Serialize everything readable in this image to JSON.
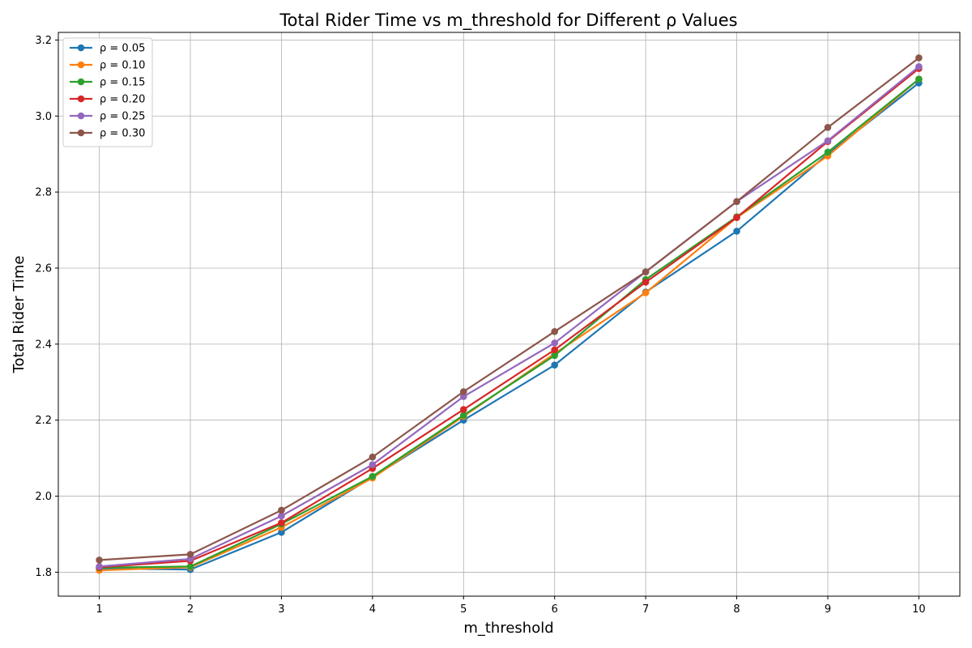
{
  "chart_data": {
    "type": "line",
    "title": "Total Rider Time vs m_threshold for Different ρ Values",
    "xlabel": "m_threshold",
    "ylabel": "Total Rider Time",
    "x": [
      1,
      2,
      3,
      4,
      5,
      6,
      7,
      8,
      9,
      10
    ],
    "xlim": [
      0.55,
      10.45
    ],
    "ylim": [
      1.737,
      3.22
    ],
    "yticks": [
      1.8,
      2.0,
      2.2,
      2.4,
      2.6,
      2.8,
      3.0,
      3.2
    ],
    "ytick_labels": [
      "1.8",
      "2.0",
      "2.2",
      "2.4",
      "2.6",
      "2.8",
      "3.0",
      "3.2"
    ],
    "xtick_labels": [
      "1",
      "2",
      "3",
      "4",
      "5",
      "6",
      "7",
      "8",
      "9",
      "10"
    ],
    "grid": true,
    "legend_position": "upper-left",
    "series": [
      {
        "name": "ρ = 0.05",
        "color": "#1f77b4",
        "values": [
          1.81,
          1.807,
          1.905,
          2.05,
          2.2,
          2.345,
          2.537,
          2.697,
          2.9,
          3.087
        ]
      },
      {
        "name": "ρ = 0.10",
        "color": "#ff7f0e",
        "values": [
          1.805,
          1.813,
          1.918,
          2.048,
          2.21,
          2.375,
          2.535,
          2.733,
          2.895,
          3.097
        ]
      },
      {
        "name": "ρ = 0.15",
        "color": "#2ca02c",
        "values": [
          1.812,
          1.815,
          1.927,
          2.052,
          2.213,
          2.37,
          2.57,
          2.735,
          2.905,
          3.097
        ]
      },
      {
        "name": "ρ = 0.20",
        "color": "#d62728",
        "values": [
          1.813,
          1.83,
          1.93,
          2.073,
          2.228,
          2.385,
          2.563,
          2.733,
          2.933,
          3.125
        ]
      },
      {
        "name": "ρ = 0.25",
        "color": "#9467bd",
        "values": [
          1.815,
          1.835,
          1.948,
          2.083,
          2.262,
          2.403,
          2.59,
          2.775,
          2.935,
          3.13
        ]
      },
      {
        "name": "ρ = 0.30",
        "color": "#8c564b",
        "values": [
          1.832,
          1.847,
          1.963,
          2.103,
          2.275,
          2.433,
          2.59,
          2.775,
          2.97,
          3.153
        ]
      }
    ]
  }
}
